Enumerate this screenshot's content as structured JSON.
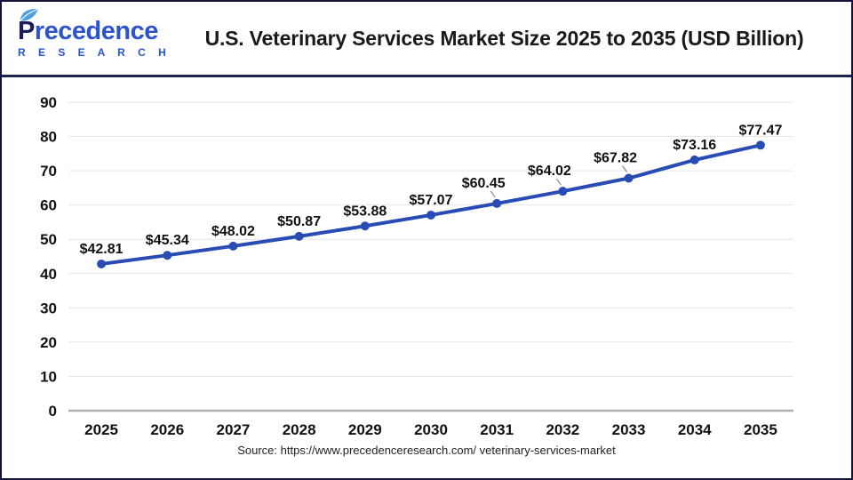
{
  "header": {
    "logo": {
      "brand_first_letter": "P",
      "brand_rest": "recedence",
      "brand_sub": "R E S E A R C H"
    },
    "title": "U.S. Veterinary Services Market Size 2025 to 2035 (USD Billion)"
  },
  "chart_data": {
    "type": "line",
    "title": "U.S. Veterinary Services Market Size 2025 to 2035 (USD Billion)",
    "categories": [
      "2025",
      "2026",
      "2027",
      "2028",
      "2029",
      "2030",
      "2031",
      "2032",
      "2033",
      "2034",
      "2035"
    ],
    "values": [
      42.81,
      45.34,
      48.02,
      50.87,
      53.88,
      57.07,
      60.45,
      64.02,
      67.82,
      73.16,
      77.47
    ],
    "value_labels": [
      "$42.81",
      "$45.34",
      "$48.02",
      "$50.87",
      "$53.88",
      "$57.07",
      "$60.45",
      "$64.02",
      "$67.82",
      "$73.16",
      "$77.47"
    ],
    "xlabel": "",
    "ylabel": "",
    "ylim": [
      0,
      90
    ],
    "ytick_step": 10,
    "grid": true,
    "legend_position": "none",
    "line_color": "#284bb4",
    "marker_color": "#284bb4",
    "label_leader_indices": [
      6,
      7,
      8
    ]
  },
  "source": {
    "text": "Source: https://www.precedenceresearch.com/ veterinary-services-market"
  },
  "colors": {
    "accent_blue": "#284bb4",
    "logo_navy": "#191d5a",
    "logo_blue": "#2d55cb",
    "separator_navy": "#1b2153",
    "grid_gray": "#e6e6e6",
    "axis_gray": "#b0b0b0"
  }
}
